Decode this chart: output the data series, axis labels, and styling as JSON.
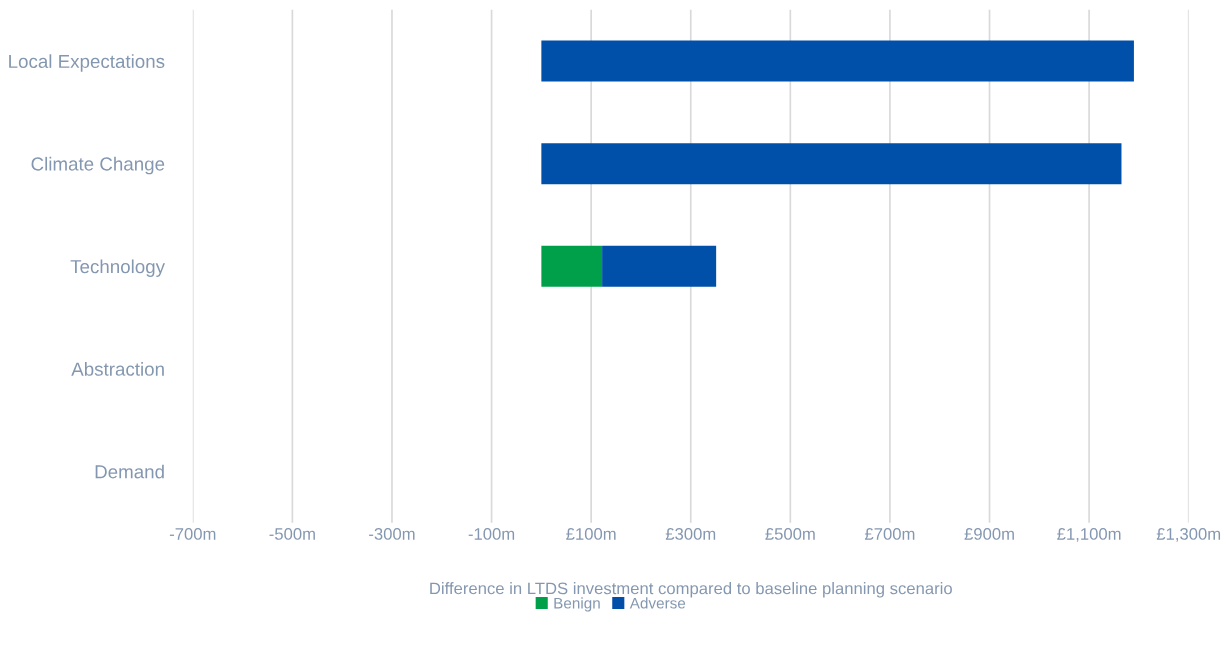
{
  "chart_data": {
    "type": "bar",
    "orientation": "horizontal",
    "stacked": true,
    "xlabel": "Difference in LTDS investment compared to baseline planning scenario",
    "categories": [
      "Local Expectations",
      "Climate Change",
      "Technology",
      "Abstraction",
      "Demand"
    ],
    "series": [
      {
        "name": "Benign",
        "color": "#00a04a",
        "values": [
          0,
          0,
          122,
          0,
          0
        ]
      },
      {
        "name": "Adverse",
        "color": "#004fa8",
        "values": [
          1190,
          1165,
          229,
          0,
          0
        ]
      }
    ],
    "xlim": [
      -700,
      1300
    ],
    "xticks": [
      {
        "value": -700,
        "label": "-700m"
      },
      {
        "value": -500,
        "label": "-500m"
      },
      {
        "value": -300,
        "label": "-300m"
      },
      {
        "value": -100,
        "label": "-100m"
      },
      {
        "value": 100,
        "label": "£100m"
      },
      {
        "value": 300,
        "label": "£300m"
      },
      {
        "value": 500,
        "label": "£500m"
      },
      {
        "value": 700,
        "label": "£700m"
      },
      {
        "value": 900,
        "label": "£900m"
      },
      {
        "value": 1100,
        "label": "£1,100m"
      },
      {
        "value": 1300,
        "label": "£1,300m"
      }
    ],
    "grid": "x",
    "legend": "bottom"
  }
}
